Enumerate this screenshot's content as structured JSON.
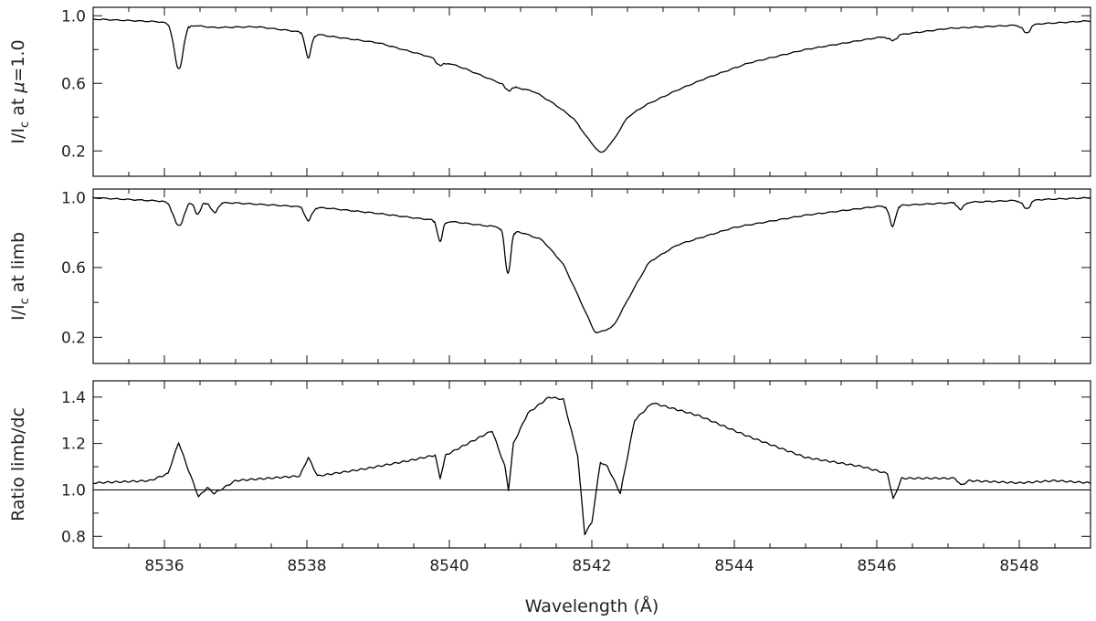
{
  "chart_data": {
    "type": "line",
    "x_range": [
      8535.0,
      8549.0
    ],
    "x_ticks": [
      8536,
      8538,
      8540,
      8542,
      8544,
      8546,
      8548
    ],
    "xlabel": "Wavelength (Å)",
    "panels": [
      {
        "ylabel_main": "I/I",
        "ylabel_sub": "c",
        "ylabel_rest": " at ",
        "ylabel_mu": "μ",
        "ylabel_tail": "=1.0",
        "ylim": [
          0.05,
          1.05
        ],
        "y_ticks": [
          0.2,
          0.6,
          1.0
        ],
        "y_tick_labels": [
          "0.2",
          "0.6",
          "1.0"
        ],
        "continuum": [
          [
            8535.0,
            0.98
          ],
          [
            8535.9,
            0.965
          ],
          [
            8536.7,
            0.93
          ],
          [
            8537.3,
            0.935
          ],
          [
            8538.0,
            0.9
          ],
          [
            8538.3,
            0.88
          ],
          [
            8539.0,
            0.84
          ],
          [
            8539.7,
            0.76
          ],
          [
            8540.2,
            0.69
          ],
          [
            8540.6,
            0.62
          ],
          [
            8540.9,
            0.58
          ],
          [
            8541.2,
            0.55
          ],
          [
            8541.5,
            0.47
          ],
          [
            8541.75,
            0.39
          ],
          [
            8541.95,
            0.27
          ],
          [
            8542.13,
            0.18
          ],
          [
            8542.3,
            0.26
          ],
          [
            8542.5,
            0.4
          ],
          [
            8542.75,
            0.47
          ],
          [
            8543.2,
            0.56
          ],
          [
            8543.6,
            0.63
          ],
          [
            8544.2,
            0.72
          ],
          [
            8545.0,
            0.8
          ],
          [
            8546.0,
            0.87
          ],
          [
            8547.0,
            0.925
          ],
          [
            8548.0,
            0.945
          ],
          [
            8549.0,
            0.97
          ]
        ],
        "lines": [
          {
            "center": 8536.2,
            "depth": 0.27,
            "width": 0.06
          },
          {
            "center": 8538.02,
            "depth": 0.15,
            "width": 0.04
          },
          {
            "center": 8539.87,
            "depth": 0.03,
            "width": 0.05
          },
          {
            "center": 8540.82,
            "depth": 0.03,
            "width": 0.05
          },
          {
            "center": 8546.22,
            "depth": 0.03,
            "width": 0.05
          },
          {
            "center": 8548.1,
            "depth": 0.05,
            "width": 0.05
          }
        ]
      },
      {
        "ylabel_main": "I/I",
        "ylabel_sub": "c",
        "ylabel_rest": " at limb",
        "ylim": [
          0.05,
          1.05
        ],
        "y_ticks": [
          0.2,
          0.6,
          1.0
        ],
        "y_tick_labels": [
          "0.2",
          "0.6",
          "1.0"
        ],
        "continuum": [
          [
            8535.0,
            1.0
          ],
          [
            8536.0,
            0.98
          ],
          [
            8537.0,
            0.97
          ],
          [
            8538.3,
            0.94
          ],
          [
            8539.0,
            0.91
          ],
          [
            8539.6,
            0.88
          ],
          [
            8540.1,
            0.86
          ],
          [
            8540.5,
            0.84
          ],
          [
            8540.8,
            0.83
          ],
          [
            8541.3,
            0.76
          ],
          [
            8541.6,
            0.62
          ],
          [
            8541.85,
            0.4
          ],
          [
            8542.05,
            0.22
          ],
          [
            8542.3,
            0.26
          ],
          [
            8542.55,
            0.45
          ],
          [
            8542.8,
            0.63
          ],
          [
            8543.2,
            0.73
          ],
          [
            8544.0,
            0.83
          ],
          [
            8545.0,
            0.9
          ],
          [
            8546.0,
            0.95
          ],
          [
            8547.0,
            0.97
          ],
          [
            8548.0,
            0.985
          ],
          [
            8549.0,
            1.0
          ]
        ],
        "lines": [
          {
            "center": 8536.2,
            "depth": 0.14,
            "width": 0.07
          },
          {
            "center": 8536.47,
            "depth": 0.07,
            "width": 0.04
          },
          {
            "center": 8536.7,
            "depth": 0.06,
            "width": 0.045
          },
          {
            "center": 8538.02,
            "depth": 0.08,
            "width": 0.045
          },
          {
            "center": 8539.87,
            "depth": 0.12,
            "width": 0.035
          },
          {
            "center": 8540.82,
            "depth": 0.26,
            "width": 0.04
          },
          {
            "center": 8546.22,
            "depth": 0.12,
            "width": 0.04
          },
          {
            "center": 8547.18,
            "depth": 0.04,
            "width": 0.04
          },
          {
            "center": 8548.1,
            "depth": 0.05,
            "width": 0.05
          }
        ]
      },
      {
        "ylabel_main": "Ratio limb/dc",
        "ylim": [
          0.75,
          1.47
        ],
        "y_ticks": [
          0.8,
          1.0,
          1.2,
          1.4
        ],
        "y_tick_labels": [
          "0.8",
          "1.0",
          "1.2",
          "1.4"
        ],
        "reference_line": 1.0,
        "ratio_points": [
          [
            8535.0,
            1.03
          ],
          [
            8535.8,
            1.04
          ],
          [
            8536.05,
            1.07
          ],
          [
            8536.2,
            1.205
          ],
          [
            8536.32,
            1.1
          ],
          [
            8536.48,
            0.97
          ],
          [
            8536.6,
            1.01
          ],
          [
            8536.7,
            0.985
          ],
          [
            8537.0,
            1.04
          ],
          [
            8537.9,
            1.06
          ],
          [
            8538.02,
            1.14
          ],
          [
            8538.15,
            1.06
          ],
          [
            8538.8,
            1.09
          ],
          [
            8539.5,
            1.13
          ],
          [
            8539.8,
            1.15
          ],
          [
            8539.87,
            1.05
          ],
          [
            8539.95,
            1.15
          ],
          [
            8540.6,
            1.255
          ],
          [
            8540.78,
            1.1
          ],
          [
            8540.83,
            1.0
          ],
          [
            8540.9,
            1.2
          ],
          [
            8541.1,
            1.33
          ],
          [
            8541.4,
            1.4
          ],
          [
            8541.6,
            1.39
          ],
          [
            8541.8,
            1.15
          ],
          [
            8541.9,
            0.81
          ],
          [
            8542.0,
            0.86
          ],
          [
            8542.12,
            1.12
          ],
          [
            8542.22,
            1.1
          ],
          [
            8542.4,
            0.985
          ],
          [
            8542.6,
            1.3
          ],
          [
            8542.85,
            1.375
          ],
          [
            8543.5,
            1.32
          ],
          [
            8544.2,
            1.23
          ],
          [
            8545.0,
            1.14
          ],
          [
            8545.8,
            1.1
          ],
          [
            8546.15,
            1.07
          ],
          [
            8546.23,
            0.96
          ],
          [
            8546.35,
            1.05
          ],
          [
            8547.1,
            1.05
          ],
          [
            8547.18,
            1.02
          ],
          [
            8547.3,
            1.04
          ],
          [
            8548.0,
            1.03
          ],
          [
            8548.5,
            1.04
          ],
          [
            8549.0,
            1.03
          ]
        ]
      }
    ]
  }
}
